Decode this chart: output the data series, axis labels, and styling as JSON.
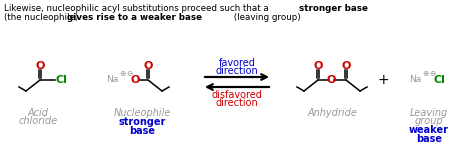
{
  "bg_color": "#ffffff",
  "favored_color": "#0000cc",
  "disfavored_color": "#cc0000",
  "label_color": "#888888",
  "green_color": "#008800",
  "red_color": "#cc0000",
  "blue_color": "#0000cc",
  "black_color": "#000000",
  "gray_color": "#999999",
  "title1_normal": "Likewise, nucleophilic acyl substitutions proceed such that a ",
  "title1_bold": "stronger base",
  "title2_bold": "gives rise to a weaker base",
  "title2_normal_pre": "(the nucleophile) ",
  "title2_normal_post": " (leaving group)"
}
